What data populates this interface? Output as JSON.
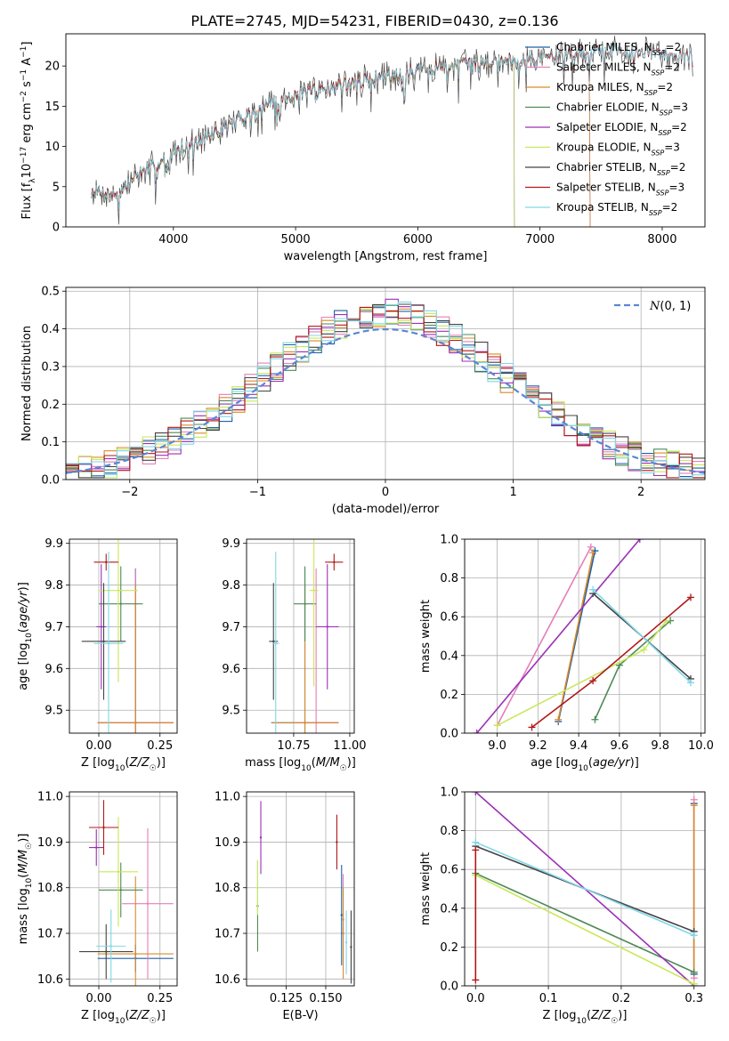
{
  "figure_title": "PLATE=2745, MJD=54231, FIBERID=0430, z=0.136",
  "colors": {
    "Chabrier MILES": "#1f5fa8",
    "Salpeter MILES": "#e57fb8",
    "Kroupa MILES": "#d98a2b",
    "Chabrier ELODIE": "#4e8a55",
    "Salpeter ELODIE": "#9b30b5",
    "Kroupa ELODIE": "#c8e85a",
    "Chabrier STELIB": "#444444",
    "Salpeter STELIB": "#b01818",
    "Kroupa STELIB": "#7fd7e8",
    "gaussian": "#5b86d6",
    "grid": "#b0b0b0"
  },
  "chart_data": [
    {
      "id": "spectrum",
      "type": "line",
      "title": "PLATE=2745, MJD=54231, FIBERID=0430, z=0.136",
      "xlabel": "wavelength [Angstrom, rest frame]",
      "ylabel": "Flux [f_λ10^-17 erg cm^-2 s^-1 A^-1]",
      "xlim": [
        3120,
        8350
      ],
      "ylim": [
        0,
        24
      ],
      "xticks": [
        4000,
        5000,
        6000,
        7000,
        8000
      ],
      "yticks": [
        0,
        5,
        10,
        15,
        20
      ],
      "grid": false,
      "legend_position": "right",
      "x_range_data": [
        3330,
        8250
      ],
      "continuum": {
        "x": [
          3330,
          3550,
          3700,
          3900,
          4000,
          4200,
          4500,
          4800,
          5000,
          5500,
          6000,
          6500,
          7000,
          7500,
          8000,
          8250
        ],
        "y": [
          4.5,
          4.0,
          6.5,
          8.0,
          9.5,
          10.5,
          13.0,
          15.5,
          16.5,
          18.0,
          19.5,
          20.5,
          21.0,
          22.0,
          21.5,
          21.0
        ]
      },
      "series": [
        {
          "name": "Chabrier MILES",
          "ssp": "2",
          "x_end": 7410
        },
        {
          "name": "Salpeter MILES",
          "ssp": "2",
          "x_end": 7410
        },
        {
          "name": "Kroupa MILES",
          "ssp": "2",
          "x_end": 7410
        },
        {
          "name": "Chabrier ELODIE",
          "ssp": "3",
          "x_end": 6790
        },
        {
          "name": "Salpeter ELODIE",
          "ssp": "2",
          "x_end": 6790
        },
        {
          "name": "Kroupa ELODIE",
          "ssp": "3",
          "x_end": 6790
        },
        {
          "name": "Chabrier STELIB",
          "ssp": "2",
          "x_end": 8250
        },
        {
          "name": "Salpeter STELIB",
          "ssp": "3",
          "x_end": 8250
        },
        {
          "name": "Kroupa STELIB",
          "ssp": "2",
          "x_end": 8250
        }
      ]
    },
    {
      "id": "residuals",
      "type": "line",
      "xlabel": "(data-model)/error",
      "ylabel": "Normed distribution",
      "xlim": [
        -2.5,
        2.5
      ],
      "ylim": [
        0,
        0.51
      ],
      "xticks": [
        -2,
        -1,
        0,
        1,
        2
      ],
      "yticks": [
        0.0,
        0.1,
        0.2,
        0.3,
        0.4,
        0.5
      ],
      "grid": true,
      "legend": [
        "N(0,1)"
      ],
      "legend_position": "top-right"
    },
    {
      "id": "age_vs_Z",
      "type": "scatter",
      "xlabel": "Z [log10(Z/Z☉)]",
      "ylabel": "age [log10(age/yr)]",
      "xlim": [
        -0.12,
        0.32
      ],
      "ylim": [
        9.445,
        9.91
      ],
      "xticks": [
        0.0,
        0.25
      ],
      "yticks": [
        9.5,
        9.6,
        9.7,
        9.8,
        9.9
      ],
      "grid": true,
      "points": [
        {
          "series": "Chabrier MILES",
          "x": 0.15,
          "y": 9.47,
          "ex": 0.155,
          "ey": 0.37
        },
        {
          "series": "Salpeter MILES",
          "x": 0.15,
          "y": 9.47,
          "ex": 0.155,
          "ey": 0.37
        },
        {
          "series": "Kroupa MILES",
          "x": 0.15,
          "y": 9.47,
          "ex": 0.155,
          "ey": 0.33
        },
        {
          "series": "Chabrier ELODIE",
          "x": 0.09,
          "y": 9.755,
          "ex": 0.09,
          "ey": 0.09
        },
        {
          "series": "Salpeter ELODIE",
          "x": 0.01,
          "y": 9.7,
          "ex": 0.02,
          "ey": 0.15
        },
        {
          "series": "Kroupa ELODIE",
          "x": 0.08,
          "y": 9.787,
          "ex": 0.08,
          "ey": 0.22
        },
        {
          "series": "Chabrier STELIB",
          "x": 0.02,
          "y": 9.665,
          "ex": 0.09,
          "ey": 0.14
        },
        {
          "series": "Salpeter STELIB",
          "x": 0.03,
          "y": 9.855,
          "ex": 0.05,
          "ey": 0.02
        },
        {
          "series": "Kroupa STELIB",
          "x": 0.04,
          "y": 9.66,
          "ex": 0.06,
          "ey": 0.22
        }
      ]
    },
    {
      "id": "age_vs_mass",
      "type": "scatter",
      "xlabel": "mass [log10(M/M☉)]",
      "xlim": [
        10.54,
        11.02
      ],
      "ylim": [
        9.445,
        9.91
      ],
      "xticks": [
        10.75,
        11.0
      ],
      "yticks": [
        9.5,
        9.6,
        9.7,
        9.8,
        9.9
      ],
      "grid": true,
      "points": [
        {
          "series": "Chabrier MILES",
          "x": 10.8,
          "y": 9.47,
          "ex": 0.15,
          "ey": 0.37
        },
        {
          "series": "Salpeter MILES",
          "x": 10.85,
          "y": 9.47,
          "ex": 0.1,
          "ey": 0.37
        },
        {
          "series": "Kroupa MILES",
          "x": 10.8,
          "y": 9.47,
          "ex": 0.15,
          "ey": 0.33
        },
        {
          "series": "Chabrier ELODIE",
          "x": 10.8,
          "y": 9.755,
          "ex": 0.05,
          "ey": 0.09
        },
        {
          "series": "Salpeter ELODIE",
          "x": 10.9,
          "y": 9.7,
          "ex": 0.05,
          "ey": 0.15
        },
        {
          "series": "Kroupa ELODIE",
          "x": 10.84,
          "y": 9.787,
          "ex": 0.02,
          "ey": 0.23
        },
        {
          "series": "Chabrier STELIB",
          "x": 10.66,
          "y": 9.665,
          "ex": 0.02,
          "ey": 0.14
        },
        {
          "series": "Salpeter STELIB",
          "x": 10.93,
          "y": 9.855,
          "ex": 0.04,
          "ey": 0.02
        },
        {
          "series": "Kroupa STELIB",
          "x": 10.67,
          "y": 9.66,
          "ex": 0.015,
          "ey": 0.22
        }
      ]
    },
    {
      "id": "massweight_vs_age",
      "type": "line",
      "xlabel": "age [log10(age/yr)]",
      "ylabel": "mass weight",
      "xlim": [
        8.84,
        10.02
      ],
      "ylim": [
        0.0,
        1.0
      ],
      "xticks": [
        9.0,
        9.2,
        9.4,
        9.6,
        9.8,
        10.0
      ],
      "yticks": [
        0.0,
        0.2,
        0.4,
        0.6,
        0.8,
        1.0
      ],
      "grid": true,
      "series": [
        {
          "name": "Chabrier MILES",
          "x": [
            9.3,
            9.48
          ],
          "y": [
            0.06,
            0.94
          ]
        },
        {
          "name": "Salpeter MILES",
          "x": [
            9.0,
            9.46
          ],
          "y": [
            0.04,
            0.96
          ]
        },
        {
          "name": "Kroupa MILES",
          "x": [
            9.3,
            9.47
          ],
          "y": [
            0.07,
            0.93
          ]
        },
        {
          "name": "Chabrier ELODIE",
          "x": [
            9.48,
            9.6,
            9.85
          ],
          "y": [
            0.07,
            0.35,
            0.58
          ]
        },
        {
          "name": "Salpeter ELODIE",
          "x": [
            8.9,
            9.7
          ],
          "y": [
            0.0,
            1.0
          ]
        },
        {
          "name": "Kroupa ELODIE",
          "x": [
            9.0,
            9.72,
            9.83
          ],
          "y": [
            0.04,
            0.43,
            0.58
          ]
        },
        {
          "name": "Chabrier STELIB",
          "x": [
            9.47,
            9.95
          ],
          "y": [
            0.72,
            0.28
          ]
        },
        {
          "name": "Salpeter STELIB",
          "x": [
            9.17,
            9.47,
            9.95
          ],
          "y": [
            0.03,
            0.27,
            0.7
          ]
        },
        {
          "name": "Kroupa STELIB",
          "x": [
            9.47,
            9.95
          ],
          "y": [
            0.74,
            0.26
          ]
        }
      ]
    },
    {
      "id": "mass_vs_Z",
      "type": "scatter",
      "xlabel": "Z [log10(Z/Z☉)]",
      "ylabel": "mass [log10(M/M☉)]",
      "xlim": [
        -0.12,
        0.32
      ],
      "ylim": [
        10.585,
        11.01
      ],
      "xticks": [
        0.0,
        0.25
      ],
      "yticks": [
        10.6,
        10.7,
        10.8,
        10.9,
        11.0
      ],
      "grid": true,
      "points": [
        {
          "series": "Chabrier MILES",
          "x": 0.15,
          "y": 10.645,
          "ex": 0.155,
          "ey": 0.03
        },
        {
          "series": "Salpeter MILES",
          "x": 0.2,
          "y": 10.765,
          "ex": 0.105,
          "ey": 0.165
        },
        {
          "series": "Kroupa MILES",
          "x": 0.15,
          "y": 10.655,
          "ex": 0.155,
          "ey": 0.17
        },
        {
          "series": "Chabrier ELODIE",
          "x": 0.09,
          "y": 10.795,
          "ex": 0.09,
          "ey": 0.06
        },
        {
          "series": "Salpeter ELODIE",
          "x": -0.01,
          "y": 10.888,
          "ex": 0.03,
          "ey": 0.04
        },
        {
          "series": "Kroupa ELODIE",
          "x": 0.08,
          "y": 10.835,
          "ex": 0.08,
          "ey": 0.12
        },
        {
          "series": "Chabrier STELIB",
          "x": 0.03,
          "y": 10.66,
          "ex": 0.11,
          "ey": 0.06
        },
        {
          "series": "Salpeter STELIB",
          "x": 0.02,
          "y": 10.932,
          "ex": 0.06,
          "ey": 0.06
        },
        {
          "series": "Kroupa STELIB",
          "x": 0.05,
          "y": 10.672,
          "ex": 0.06,
          "ey": 0.08
        }
      ]
    },
    {
      "id": "mass_vs_EBV",
      "type": "scatter",
      "xlabel": "E(B-V)",
      "xlim": [
        0.1,
        0.168
      ],
      "ylim": [
        10.585,
        11.01
      ],
      "xticks": [
        0.125,
        0.15
      ],
      "yticks": [
        10.6,
        10.7,
        10.8,
        10.9,
        11.0
      ],
      "grid": true,
      "points": [
        {
          "series": "Chabrier MILES",
          "x": 0.16,
          "y": 10.74,
          "ey": 0.11
        },
        {
          "series": "Salpeter MILES",
          "x": 0.161,
          "y": 10.73,
          "ey": 0.1
        },
        {
          "series": "Kroupa MILES",
          "x": 0.161,
          "y": 10.7,
          "ey": 0.1
        },
        {
          "series": "Chabrier ELODIE",
          "x": 0.107,
          "y": 10.76,
          "ey": 0.1
        },
        {
          "series": "Salpeter ELODIE",
          "x": 0.109,
          "y": 10.91,
          "ey": 0.08
        },
        {
          "series": "Kroupa ELODIE",
          "x": 0.107,
          "y": 10.8,
          "ey": 0.06
        },
        {
          "series": "Chabrier STELIB",
          "x": 0.166,
          "y": 10.67,
          "ey": 0.08
        },
        {
          "series": "Salpeter STELIB",
          "x": 0.157,
          "y": 10.9,
          "ey": 0.06
        },
        {
          "series": "Kroupa STELIB",
          "x": 0.163,
          "y": 10.68,
          "ey": 0.07
        }
      ]
    },
    {
      "id": "massweight_vs_Z",
      "type": "line",
      "xlabel": "Z [log10(Z/Z☉)]",
      "ylabel": "mass weight",
      "xlim": [
        -0.015,
        0.315
      ],
      "ylim": [
        0.0,
        1.0
      ],
      "xticks": [
        0.0,
        0.1,
        0.2,
        0.3
      ],
      "yticks": [
        0.0,
        0.2,
        0.4,
        0.6,
        0.8,
        1.0
      ],
      "grid": true,
      "series": [
        {
          "name": "Chabrier MILES",
          "x": [
            0.3,
            0.3
          ],
          "y": [
            0.06,
            0.94
          ]
        },
        {
          "name": "Salpeter MILES",
          "x": [
            0.3,
            0.3
          ],
          "y": [
            0.04,
            0.96
          ]
        },
        {
          "name": "Kroupa MILES",
          "x": [
            0.3,
            0.3
          ],
          "y": [
            0.07,
            0.93
          ]
        },
        {
          "name": "Chabrier ELODIE",
          "x": [
            0.0,
            0.3
          ],
          "y": [
            0.58,
            0.07
          ]
        },
        {
          "name": "Salpeter ELODIE",
          "x": [
            0.0,
            0.3
          ],
          "y": [
            1.0,
            0.0
          ]
        },
        {
          "name": "Kroupa ELODIE",
          "x": [
            0.0,
            0.3
          ],
          "y": [
            0.57,
            0.01
          ]
        },
        {
          "name": "Chabrier STELIB",
          "x": [
            0.0,
            0.3
          ],
          "y": [
            0.72,
            0.28
          ]
        },
        {
          "name": "Salpeter STELIB",
          "x": [
            0.0,
            0.0
          ],
          "y": [
            0.03,
            0.7
          ]
        },
        {
          "name": "Kroupa STELIB",
          "x": [
            0.0,
            0.3
          ],
          "y": [
            0.74,
            0.26
          ]
        }
      ]
    }
  ]
}
